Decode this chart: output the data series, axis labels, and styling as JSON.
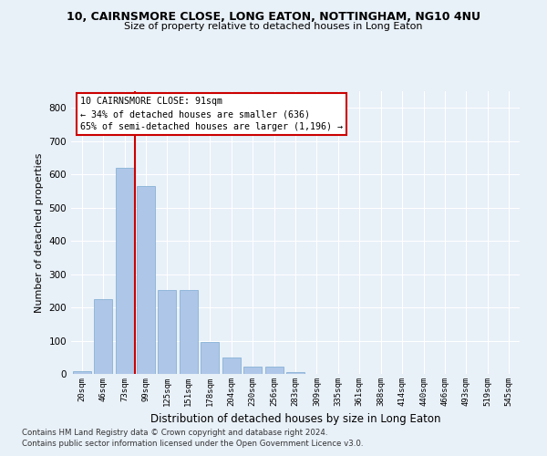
{
  "title1": "10, CAIRNSMORE CLOSE, LONG EATON, NOTTINGHAM, NG10 4NU",
  "title2": "Size of property relative to detached houses in Long Eaton",
  "xlabel": "Distribution of detached houses by size in Long Eaton",
  "ylabel": "Number of detached properties",
  "bar_values": [
    8,
    225,
    619,
    565,
    253,
    253,
    95,
    48,
    22,
    22,
    5,
    0,
    0,
    0,
    0,
    0,
    0,
    0,
    0,
    0,
    0
  ],
  "bin_labels": [
    "20sqm",
    "46sqm",
    "73sqm",
    "99sqm",
    "125sqm",
    "151sqm",
    "178sqm",
    "204sqm",
    "230sqm",
    "256sqm",
    "283sqm",
    "309sqm",
    "335sqm",
    "361sqm",
    "388sqm",
    "414sqm",
    "440sqm",
    "466sqm",
    "493sqm",
    "519sqm",
    "545sqm"
  ],
  "bar_color": "#aec6e8",
  "bar_edge_color": "#7aaad0",
  "vline_x_index": 2.5,
  "annotation_box_text": "10 CAIRNSMORE CLOSE: 91sqm\n← 34% of detached houses are smaller (636)\n65% of semi-detached houses are larger (1,196) →",
  "footer1": "Contains HM Land Registry data © Crown copyright and database right 2024.",
  "footer2": "Contains public sector information licensed under the Open Government Licence v3.0.",
  "background_color": "#e8f0f8",
  "grid_color": "#ffffff",
  "vline_color": "#cc0000",
  "ylim": [
    0,
    850
  ],
  "yticks": [
    0,
    100,
    200,
    300,
    400,
    500,
    600,
    700,
    800
  ]
}
